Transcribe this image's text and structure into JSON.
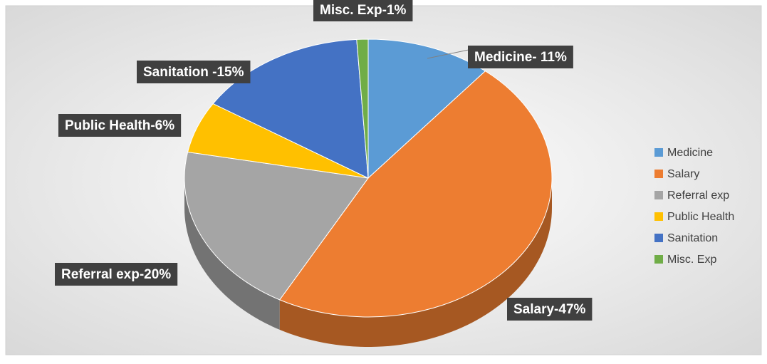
{
  "chart_data": {
    "type": "pie",
    "categories": [
      "Medicine",
      "Salary",
      "Referral exp",
      "Public Health",
      "Sanitation",
      "Misc. Exp"
    ],
    "values": [
      11,
      47,
      20,
      6,
      15,
      1
    ],
    "value_labels": [
      "Medicine- 11%",
      "Salary-47%",
      "Referral exp-20%",
      "Public Health-6%",
      "Sanitation -15%",
      "Misc. Exp-1%"
    ],
    "colors": [
      "#5b9bd5",
      "#ed7d31",
      "#a5a5a5",
      "#ffc000",
      "#4472c4",
      "#70ad47"
    ],
    "legend": "right"
  }
}
